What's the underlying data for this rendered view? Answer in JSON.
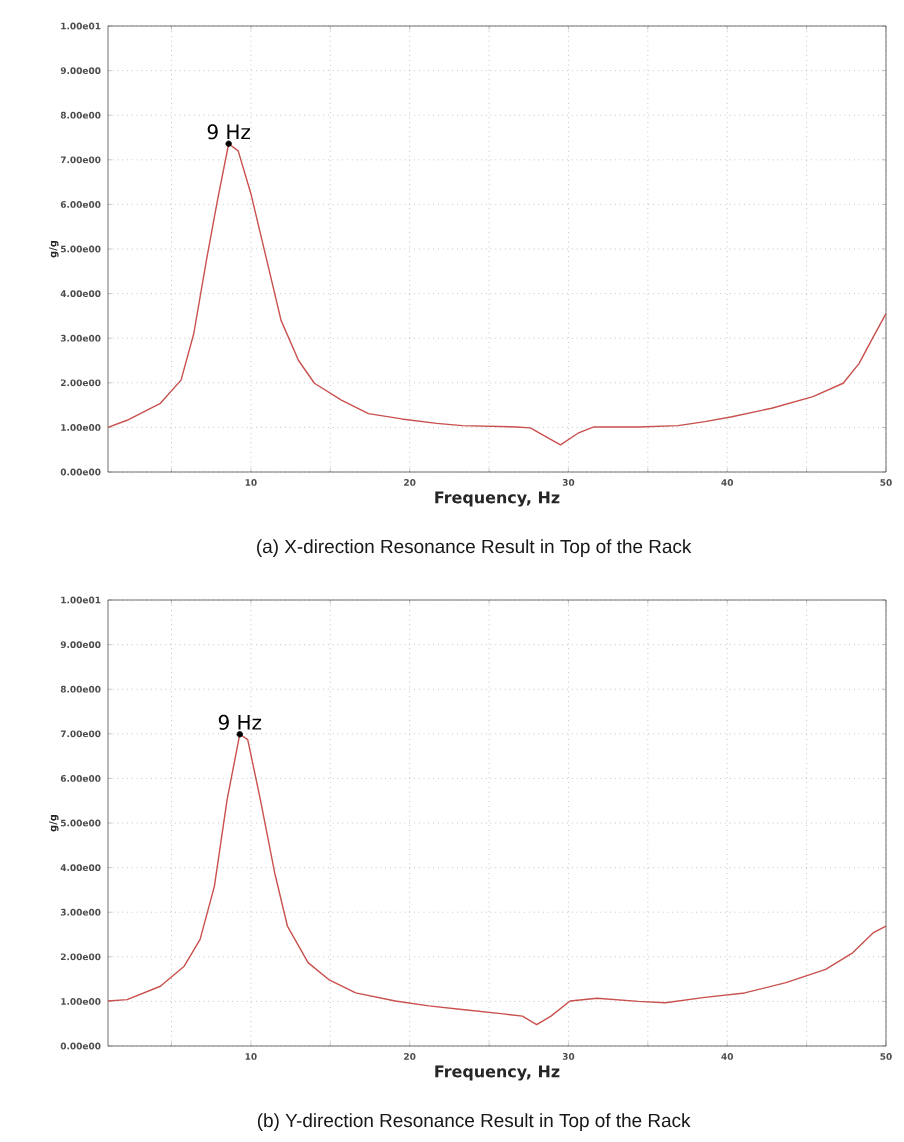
{
  "chart_data": [
    {
      "type": "line",
      "xlabel": "Frequency, Hz",
      "ylabel": "g/g",
      "xlim": [
        1,
        50
      ],
      "ylim": [
        0,
        10
      ],
      "grid": true,
      "xticks": [
        {
          "value": 5,
          "label": null
        },
        10,
        {
          "value": 15,
          "label": null
        },
        20,
        {
          "value": 25,
          "label": null
        },
        30,
        {
          "value": 35,
          "label": null
        },
        40,
        {
          "value": 45,
          "label": null
        },
        50
      ],
      "yticks": [
        {
          "value": 0,
          "label": "0.00e00"
        },
        {
          "value": 1,
          "label": "1.00e00"
        },
        {
          "value": 2,
          "label": "2.00e00"
        },
        {
          "value": 3,
          "label": "3.00e00"
        },
        {
          "value": 4,
          "label": "4.00e00"
        },
        {
          "value": 5,
          "label": "5.00e00"
        },
        {
          "value": 6,
          "label": "6.00e00"
        },
        {
          "value": 7,
          "label": "7.00e00"
        },
        {
          "value": 8,
          "label": "8.00e00"
        },
        {
          "value": 9,
          "label": "9.00e00"
        },
        {
          "value": 10,
          "label": "1.00e01"
        }
      ],
      "series": [
        {
          "color": "#c8504d",
          "x": [
            1,
            2.2,
            4.3,
            5.6,
            6.4,
            7.2,
            7.9,
            8.6,
            9.2,
            10,
            11.1,
            11.9,
            13,
            14,
            15.7,
            17.4,
            19.5,
            21.7,
            23.3,
            26.7,
            27.6,
            28.6,
            29.5,
            30.6,
            31.6,
            34.4,
            36.9,
            38.6,
            40.3,
            42.8,
            45.4,
            47.3,
            48.3,
            49.2,
            50
          ],
          "values": [
            1.0,
            1.16,
            1.54,
            2.06,
            3.1,
            4.75,
            6.1,
            7.36,
            7.2,
            6.24,
            4.6,
            3.4,
            2.5,
            1.99,
            1.61,
            1.31,
            1.19,
            1.09,
            1.04,
            1.01,
            0.99,
            0.79,
            0.61,
            0.87,
            1.01,
            1.01,
            1.04,
            1.13,
            1.24,
            1.43,
            1.69,
            1.99,
            2.43,
            3.03,
            3.55
          ]
        },
        {
          "type": "scatter",
          "color": "#000000",
          "marker": "circle",
          "x": [
            8.6
          ],
          "values": [
            7.36
          ]
        }
      ],
      "annotations": [
        {
          "text": "9 Hz",
          "x": 8.6,
          "y": 7.36
        },
        "(a) X-direction Resonance Result in Top of the Rack"
      ]
    },
    {
      "type": "line",
      "xlabel": "Frequency, Hz",
      "ylabel": "g/g",
      "xlim": [
        1,
        50
      ],
      "ylim": [
        0,
        10
      ],
      "grid": true,
      "xticks": [
        {
          "value": 5,
          "label": null
        },
        10,
        {
          "value": 15,
          "label": null
        },
        20,
        {
          "value": 25,
          "label": null
        },
        30,
        {
          "value": 35,
          "label": null
        },
        40,
        {
          "value": 45,
          "label": null
        },
        50
      ],
      "yticks": [
        {
          "value": 0,
          "label": "0.00e00"
        },
        {
          "value": 1,
          "label": "1.00e00"
        },
        {
          "value": 2,
          "label": "2.00e00"
        },
        {
          "value": 3,
          "label": "3.00e00"
        },
        {
          "value": 4,
          "label": "4.00e00"
        },
        {
          "value": 5,
          "label": "5.00e00"
        },
        {
          "value": 6,
          "label": "6.00e00"
        },
        {
          "value": 7,
          "label": "7.00e00"
        },
        {
          "value": 8,
          "label": "8.00e00"
        },
        {
          "value": 9,
          "label": "9.00e00"
        },
        {
          "value": 10,
          "label": "1.00e01"
        }
      ],
      "series": [
        {
          "color": "#c8504d",
          "x": [
            1,
            2.2,
            4.3,
            5.8,
            6.8,
            7.7,
            8.5,
            9.3,
            9.8,
            10.6,
            11.5,
            12.3,
            13.6,
            14.9,
            16.6,
            19.1,
            21.2,
            23.3,
            25.9,
            27.1,
            28,
            28.9,
            30.1,
            31.8,
            34.4,
            36.1,
            38.6,
            41.1,
            43.7,
            46.2,
            47.9,
            49.2,
            50
          ],
          "values": [
            1.01,
            1.04,
            1.34,
            1.79,
            2.39,
            3.58,
            5.52,
            6.99,
            6.87,
            5.52,
            3.88,
            2.69,
            1.87,
            1.49,
            1.19,
            1.01,
            0.9,
            0.82,
            0.72,
            0.67,
            0.48,
            0.67,
            1.01,
            1.07,
            1.0,
            0.97,
            1.09,
            1.19,
            1.42,
            1.72,
            2.09,
            2.54,
            2.69
          ]
        },
        {
          "type": "scatter",
          "color": "#000000",
          "marker": "circle",
          "x": [
            9.3
          ],
          "values": [
            6.99
          ]
        }
      ],
      "annotations": [
        {
          "text": "9 Hz",
          "x": 9.3,
          "y": 6.99
        },
        "(b) Y-direction Resonance Result in Top of the Rack"
      ]
    }
  ]
}
